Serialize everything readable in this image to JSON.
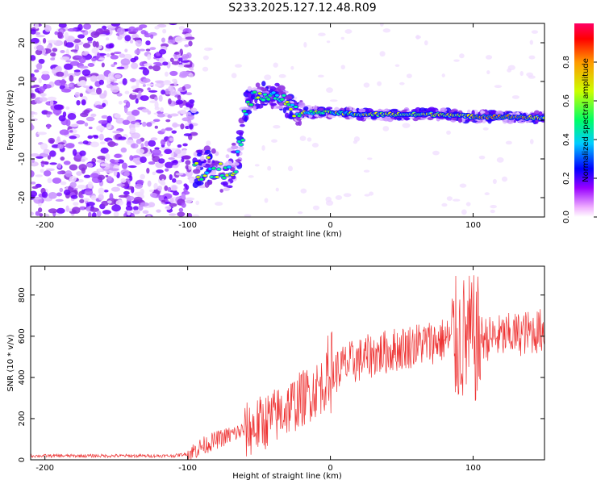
{
  "title": "S233.2025.127.12.48.R09",
  "colors": {
    "snr_line": "#ee3333",
    "axis": "#000000",
    "background": "#ffffff"
  },
  "chart_data": [
    {
      "type": "heatmap",
      "xlabel": "Height of straight line (km)",
      "ylabel": "Frequency (Hz)",
      "xlim": [
        -210,
        150
      ],
      "ylim": [
        -25,
        25
      ],
      "x_ticks": [
        -200,
        -100,
        0,
        100
      ],
      "y_ticks": [
        -20,
        -10,
        0,
        10,
        20
      ],
      "colorbar": {
        "label": "Normalized spectral amplitude",
        "range": [
          0.0,
          1.0
        ],
        "ticks": [
          "0.0",
          "0.2",
          "0.4",
          "0.6",
          "0.8"
        ],
        "colormap": "rainbow (magenta-blue-cyan-green-yellow-red)"
      },
      "ridge": [
        {
          "x": -95,
          "y": -13
        },
        {
          "x": -85,
          "y": -12
        },
        {
          "x": -75,
          "y": -14
        },
        {
          "x": -65,
          "y": -10
        },
        {
          "x": -58,
          "y": 5
        },
        {
          "x": -45,
          "y": 7
        },
        {
          "x": -35,
          "y": 6
        },
        {
          "x": -25,
          "y": 2
        },
        {
          "x": -10,
          "y": 2
        },
        {
          "x": 0,
          "y": 2
        },
        {
          "x": 20,
          "y": 1.5
        },
        {
          "x": 50,
          "y": 1.5
        },
        {
          "x": 80,
          "y": 1.5
        },
        {
          "x": 95,
          "y": 1
        },
        {
          "x": 100,
          "y": 1
        },
        {
          "x": 130,
          "y": 0.8
        },
        {
          "x": 150,
          "y": 0.5
        }
      ]
    },
    {
      "type": "line",
      "xlabel": "Height of straight line (km)",
      "ylabel": "SNR (10 * v/v)",
      "xlim": [
        -210,
        150
      ],
      "ylim": [
        0,
        940
      ],
      "x_ticks": [
        -200,
        -100,
        0,
        100
      ],
      "y_ticks": [
        0,
        200,
        400,
        600,
        800
      ],
      "series": [
        {
          "color": "#ee3333",
          "envelope": [
            {
              "x": -210,
              "y": 20
            },
            {
              "x": -110,
              "y": 20
            },
            {
              "x": -100,
              "y": 30
            },
            {
              "x": -90,
              "y": 70
            },
            {
              "x": -80,
              "y": 100
            },
            {
              "x": -60,
              "y": 150
            },
            {
              "x": -40,
              "y": 220
            },
            {
              "x": -20,
              "y": 310
            },
            {
              "x": -5,
              "y": 380
            },
            {
              "x": 0,
              "y": 420
            },
            {
              "x": 10,
              "y": 470
            },
            {
              "x": 30,
              "y": 520
            },
            {
              "x": 60,
              "y": 570
            },
            {
              "x": 85,
              "y": 600
            },
            {
              "x": 95,
              "y": 620
            },
            {
              "x": 110,
              "y": 600
            },
            {
              "x": 130,
              "y": 620
            },
            {
              "x": 150,
              "y": 640
            }
          ]
        }
      ]
    }
  ]
}
